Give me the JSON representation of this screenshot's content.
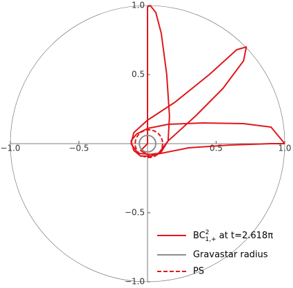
{
  "chart_data": {
    "type": "line",
    "xlim": [
      -1,
      1
    ],
    "ylim": [
      -1,
      1
    ],
    "xticks": [
      {
        "value": -1,
        "label": "−1.0"
      },
      {
        "value": -0.5,
        "label": "−0.5"
      },
      {
        "value": 0.5,
        "label": "0.5"
      },
      {
        "value": 1,
        "label": "1.0"
      }
    ],
    "yticks": [
      {
        "value": -1,
        "label": "−1.0"
      },
      {
        "value": -0.5,
        "label": "−0.5"
      },
      {
        "value": 0.5,
        "label": "0.5"
      },
      {
        "value": 1,
        "label": "1.0"
      }
    ],
    "series": [
      {
        "name": {
          "base": "BC",
          "sup": "2",
          "sub": "1,+",
          "suffix": " at t=2.618π"
        },
        "color": "#e0161b",
        "style": "solid",
        "x": [
          1.0,
          0.9,
          0.7,
          0.4,
          0.15,
          0.0,
          -0.08,
          -0.12,
          -0.1,
          -0.05,
          0.03,
          0.1,
          0.15,
          0.16,
          0.14,
          0.1,
          0.06,
          0.02,
          0.0,
          0.0,
          0.0,
          0.0,
          -0.05,
          0.0,
          0.08,
          0.15,
          0.35,
          0.55,
          0.7,
          0.72,
          0.65,
          0.45,
          0.2,
          0.0,
          -0.1,
          -0.12,
          -0.07,
          0.05,
          0.3,
          0.6,
          0.9,
          1.0
        ],
        "y": [
          0.0,
          0.12,
          0.145,
          0.15,
          0.14,
          0.11,
          0.07,
          0.02,
          -0.05,
          -0.09,
          -0.09,
          -0.06,
          0.02,
          0.2,
          0.5,
          0.8,
          0.95,
          1.0,
          0.99,
          0.5,
          0.05,
          0.0,
          -0.05,
          -0.08,
          -0.07,
          0.02,
          0.2,
          0.4,
          0.6,
          0.7,
          0.68,
          0.5,
          0.3,
          0.17,
          0.08,
          0.0,
          -0.07,
          -0.08,
          -0.03,
          -0.01,
          0.0,
          0.0
        ]
      },
      {
        "name": "Gravastar radius",
        "color": "#8c8c8c",
        "style": "solid",
        "center": [
          0,
          0
        ],
        "radius": 0.06
      },
      {
        "name": "PS",
        "color": "#e0161b",
        "style": "dashed",
        "center": [
          0.01,
          0.0
        ],
        "radius": 0.1
      }
    ]
  }
}
